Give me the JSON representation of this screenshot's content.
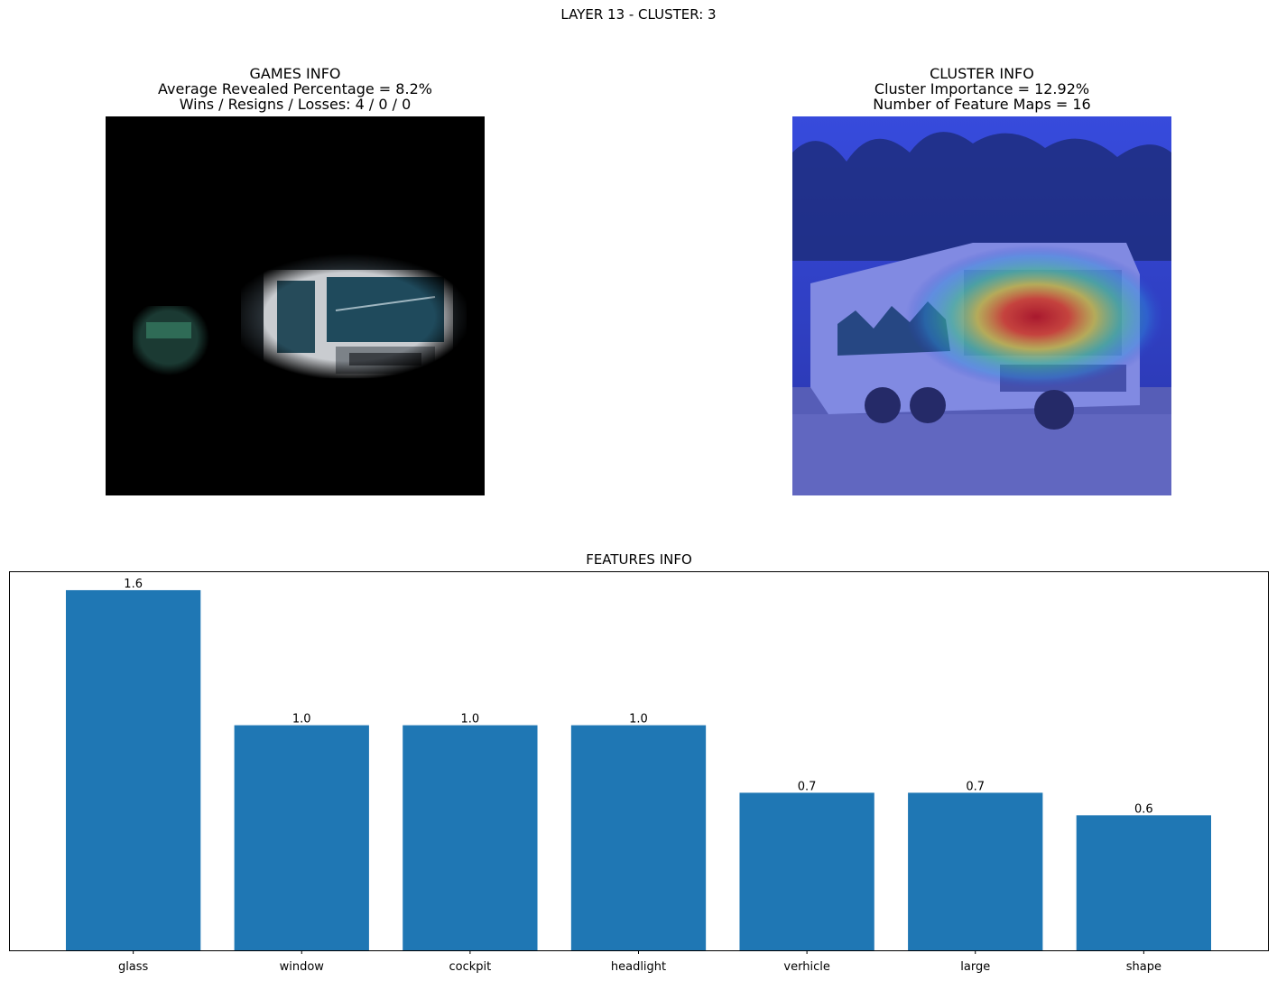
{
  "figure": {
    "suptitle": "LAYER 13 - CLUSTER: 3"
  },
  "games_info": {
    "title": "GAMES INFO",
    "revealed": "Average Revealed Percentage = 8.2%",
    "record": "Wins / Resigns / Losses: 4 / 0 / 0"
  },
  "cluster_info": {
    "title": "CLUSTER INFO",
    "importance": "Cluster Importance = 12.92%",
    "feature_maps": "Number of Feature Maps = 16"
  },
  "colors": {
    "bar": "#1f77b4",
    "masked_background": "#000000",
    "heatmap_base": "#3d3dd6"
  },
  "chart_data": {
    "type": "bar",
    "title": "FEATURES INFO",
    "xlabel": "",
    "ylabel": "",
    "categories": [
      "glass",
      "window",
      "cockpit",
      "headlight",
      "verhicle",
      "large",
      "shape"
    ],
    "values": [
      1.6,
      1.0,
      1.0,
      1.0,
      0.7,
      0.7,
      0.6
    ],
    "value_labels": [
      "1.6",
      "1.0",
      "1.0",
      "1.0",
      "0.7",
      "0.7",
      "0.6"
    ],
    "ylim": [
      0,
      1.68
    ],
    "y_ticks_visible": false,
    "grid": false,
    "legend": "none"
  }
}
